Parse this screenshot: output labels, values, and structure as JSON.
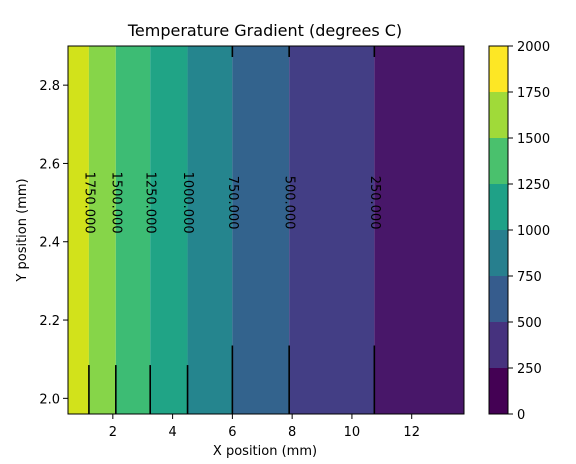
{
  "chart_data": {
    "type": "heatmap",
    "subtype": "filled-contour",
    "title": "Temperature Gradient (degrees C)",
    "xlabel": "X position (mm)",
    "ylabel": "Y position (mm)",
    "xlim": [
      0.5,
      13.75
    ],
    "ylim": [
      1.96,
      2.9
    ],
    "x_ticks": [
      2,
      4,
      6,
      8,
      10,
      12
    ],
    "x_tick_labels": [
      "2",
      "4",
      "6",
      "8",
      "10",
      "12"
    ],
    "y_ticks": [
      2.0,
      2.2,
      2.4,
      2.6,
      2.8
    ],
    "y_tick_labels": [
      "2.0",
      "2.2",
      "2.4",
      "2.6",
      "2.8"
    ],
    "levels": [
      0,
      250,
      500,
      750,
      1000,
      1250,
      1500,
      1750,
      2000
    ],
    "level_colors": [
      "#440154",
      "#46327e",
      "#365c8d",
      "#277f8e",
      "#1fa187",
      "#4ac16d",
      "#a0da39",
      "#fde725"
    ],
    "bands": [
      {
        "x0": 0.5,
        "x1": 1.2,
        "color": "#d2e21b"
      },
      {
        "x0": 1.2,
        "x1": 2.1,
        "color": "#86d549"
      },
      {
        "x0": 2.1,
        "x1": 3.25,
        "color": "#3dbc74"
      },
      {
        "x0": 3.25,
        "x1": 4.5,
        "color": "#20a486"
      },
      {
        "x0": 4.5,
        "x1": 6.0,
        "color": "#25858e"
      },
      {
        "x0": 6.0,
        "x1": 7.9,
        "color": "#33638d"
      },
      {
        "x0": 7.9,
        "x1": 10.75,
        "color": "#433e85"
      },
      {
        "x0": 10.75,
        "x1": 13.75,
        "color": "#481769"
      }
    ],
    "contours": [
      {
        "x": 1.2,
        "label": "1750.000",
        "label_y": 2.5
      },
      {
        "x": 2.1,
        "label": "1500.000",
        "label_y": 2.5
      },
      {
        "x": 3.25,
        "label": "1250.000",
        "label_y": 2.5
      },
      {
        "x": 4.5,
        "label": "1000.000",
        "label_y": 2.5
      },
      {
        "x": 6.0,
        "label": "750.000",
        "label_y": 2.5
      },
      {
        "x": 7.9,
        "label": "500.000",
        "label_y": 2.5
      },
      {
        "x": 10.75,
        "label": "250.000",
        "label_y": 2.5
      }
    ],
    "colorbar": {
      "ticks": [
        0,
        250,
        500,
        750,
        1000,
        1250,
        1500,
        1750,
        2000
      ],
      "tick_labels": [
        "0",
        "250",
        "500",
        "750",
        "1000",
        "1250",
        "1500",
        "1750",
        "2000"
      ]
    },
    "grid": false,
    "legend": "colorbar-right"
  }
}
